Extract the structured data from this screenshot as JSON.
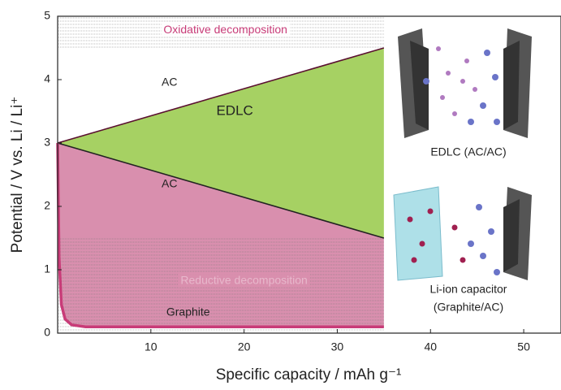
{
  "chart_data": {
    "type": "line",
    "xlabel": "Specific capacity / mAh g⁻¹",
    "ylabel": "Potential / V vs. Li / Li⁺",
    "xlim": [
      0,
      54
    ],
    "ylim": [
      0,
      5
    ],
    "xticks": [
      10,
      20,
      30,
      40,
      50
    ],
    "yticks": [
      0,
      1,
      2,
      3,
      4,
      5
    ],
    "series": [
      {
        "name": "AC",
        "color": "#5a1030",
        "x": [
          0,
          35
        ],
        "values": [
          3,
          4.5
        ]
      },
      {
        "name": "AC",
        "color": "#222222",
        "x": [
          0,
          35
        ],
        "values": [
          3,
          1.5
        ]
      },
      {
        "name": "Graphite",
        "color": "#c83c78",
        "x": [
          0,
          0.15,
          0.4,
          0.8,
          1.5,
          3,
          35
        ],
        "values": [
          3,
          1.2,
          0.45,
          0.22,
          0.13,
          0.1,
          0.1
        ]
      }
    ],
    "fill_colors": [
      "#a6d163",
      "#d98fae"
    ],
    "bands": [
      {
        "label": "Oxidative decomposition",
        "xlim": [
          0,
          35
        ],
        "ylim": [
          4.5,
          5
        ]
      },
      {
        "label": "Reductive decomposition",
        "xlim": [
          0,
          35
        ],
        "ylim": [
          0,
          1.5
        ]
      }
    ],
    "annotations": [
      "EDLC"
    ],
    "illustration_labels": [
      "EDLC (AC/AC)",
      "Li-ion capacitor",
      "(Graphite/AC)"
    ]
  }
}
